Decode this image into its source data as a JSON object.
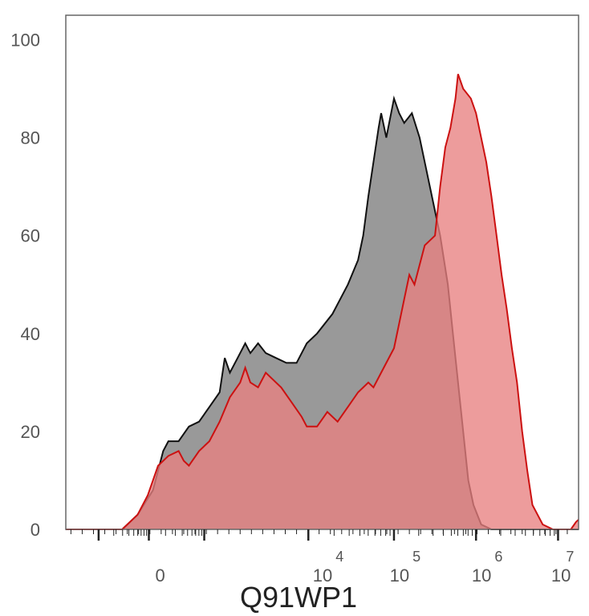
{
  "chart_data": {
    "type": "area",
    "title": "",
    "xlabel": "Q91WP1",
    "ylabel": "",
    "ylim": [
      0,
      105
    ],
    "x_scale": "biexponential",
    "x_ticks": [
      {
        "value": "0",
        "base": "0",
        "exp": ""
      },
      {
        "value": "10^4",
        "base": "10",
        "exp": "4"
      },
      {
        "value": "10^5",
        "base": "10",
        "exp": "5"
      },
      {
        "value": "10^6",
        "base": "10",
        "exp": "6"
      },
      {
        "value": "10^7",
        "base": "10",
        "exp": "7"
      }
    ],
    "y_ticks": [
      0,
      20,
      40,
      60,
      80,
      100
    ],
    "grid": false,
    "legend": "none",
    "series": [
      {
        "color_fill": "#999999",
        "color_line": "#111111",
        "points": [
          [
            0.0,
            0
          ],
          [
            0.11,
            0
          ],
          [
            0.14,
            3
          ],
          [
            0.17,
            8
          ],
          [
            0.19,
            16
          ],
          [
            0.2,
            18
          ],
          [
            0.22,
            18
          ],
          [
            0.24,
            21
          ],
          [
            0.26,
            22
          ],
          [
            0.28,
            25
          ],
          [
            0.3,
            28
          ],
          [
            0.31,
            35
          ],
          [
            0.32,
            32
          ],
          [
            0.335,
            35
          ],
          [
            0.35,
            38
          ],
          [
            0.36,
            36
          ],
          [
            0.375,
            38
          ],
          [
            0.39,
            36
          ],
          [
            0.41,
            35
          ],
          [
            0.43,
            34
          ],
          [
            0.45,
            34
          ],
          [
            0.47,
            38
          ],
          [
            0.49,
            40
          ],
          [
            0.52,
            44
          ],
          [
            0.55,
            50
          ],
          [
            0.57,
            55
          ],
          [
            0.58,
            60
          ],
          [
            0.59,
            68
          ],
          [
            0.6,
            75
          ],
          [
            0.61,
            82
          ],
          [
            0.615,
            85
          ],
          [
            0.625,
            80
          ],
          [
            0.64,
            88
          ],
          [
            0.65,
            85
          ],
          [
            0.66,
            83
          ],
          [
            0.675,
            85
          ],
          [
            0.69,
            80
          ],
          [
            0.71,
            70
          ],
          [
            0.73,
            60
          ],
          [
            0.745,
            50
          ],
          [
            0.755,
            40
          ],
          [
            0.765,
            30
          ],
          [
            0.775,
            20
          ],
          [
            0.785,
            10
          ],
          [
            0.795,
            5
          ],
          [
            0.81,
            1
          ],
          [
            0.83,
            0
          ],
          [
            1.0,
            0
          ]
        ]
      },
      {
        "color_fill": "#e88080",
        "color_line": "#cc1111",
        "points": [
          [
            0.0,
            0
          ],
          [
            0.11,
            0
          ],
          [
            0.12,
            1
          ],
          [
            0.14,
            3
          ],
          [
            0.16,
            7
          ],
          [
            0.18,
            13
          ],
          [
            0.2,
            15
          ],
          [
            0.22,
            16
          ],
          [
            0.23,
            14
          ],
          [
            0.24,
            13
          ],
          [
            0.26,
            16
          ],
          [
            0.28,
            18
          ],
          [
            0.3,
            22
          ],
          [
            0.32,
            27
          ],
          [
            0.34,
            30
          ],
          [
            0.35,
            33
          ],
          [
            0.36,
            30
          ],
          [
            0.375,
            29
          ],
          [
            0.39,
            32
          ],
          [
            0.4,
            31
          ],
          [
            0.42,
            29
          ],
          [
            0.44,
            26
          ],
          [
            0.46,
            23
          ],
          [
            0.47,
            21
          ],
          [
            0.49,
            21
          ],
          [
            0.51,
            24
          ],
          [
            0.53,
            22
          ],
          [
            0.55,
            25
          ],
          [
            0.57,
            28
          ],
          [
            0.59,
            30
          ],
          [
            0.6,
            29
          ],
          [
            0.62,
            33
          ],
          [
            0.64,
            37
          ],
          [
            0.66,
            47
          ],
          [
            0.67,
            52
          ],
          [
            0.68,
            50
          ],
          [
            0.69,
            54
          ],
          [
            0.7,
            58
          ],
          [
            0.71,
            59
          ],
          [
            0.72,
            60
          ],
          [
            0.73,
            70
          ],
          [
            0.74,
            78
          ],
          [
            0.75,
            82
          ],
          [
            0.76,
            88
          ],
          [
            0.765,
            93
          ],
          [
            0.775,
            90
          ],
          [
            0.79,
            88
          ],
          [
            0.8,
            85
          ],
          [
            0.81,
            80
          ],
          [
            0.82,
            75
          ],
          [
            0.83,
            68
          ],
          [
            0.84,
            60
          ],
          [
            0.85,
            52
          ],
          [
            0.86,
            45
          ],
          [
            0.87,
            37
          ],
          [
            0.88,
            30
          ],
          [
            0.89,
            20
          ],
          [
            0.9,
            12
          ],
          [
            0.91,
            5
          ],
          [
            0.93,
            1
          ],
          [
            0.95,
            0
          ],
          [
            0.985,
            0
          ],
          [
            0.995,
            1.5
          ],
          [
            1.0,
            2
          ]
        ]
      }
    ]
  }
}
